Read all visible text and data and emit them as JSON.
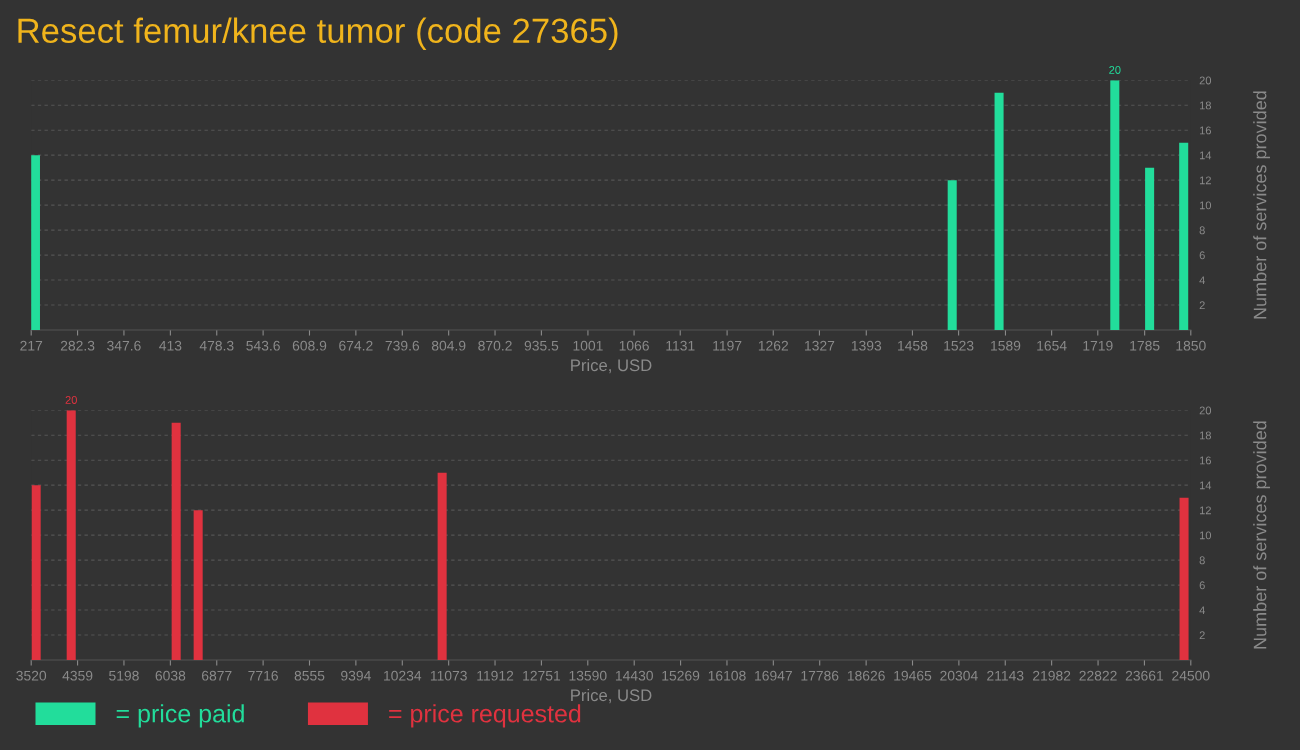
{
  "chart_data": [
    {
      "type": "bar",
      "title": "Resect femur/knee tumor (code 27365)",
      "xlabel": "Price, USD",
      "ylabel": "Number of services provided",
      "x": [
        223,
        1514,
        1580,
        1743,
        1792,
        1840
      ],
      "series": [
        {
          "name": "= price paid",
          "color": "#22dd9b",
          "values": [
            14,
            12,
            19,
            20,
            13,
            15
          ],
          "value_labels": [
            null,
            null,
            null,
            "20",
            null,
            null
          ]
        }
      ],
      "xlim": [
        217,
        1850
      ],
      "xticks": [
        217,
        282.3,
        347.6,
        413,
        478.3,
        543.6,
        608.9,
        674.2,
        739.6,
        804.9,
        870.2,
        935.5,
        1001,
        1066,
        1131,
        1197,
        1262,
        1327,
        1393,
        1458,
        1523,
        1589,
        1654,
        1719,
        1785,
        1850
      ],
      "ylim": [
        0,
        20
      ],
      "yticks": [
        2,
        4,
        6,
        8,
        10,
        12,
        14,
        16,
        18,
        20
      ],
      "grid": "y",
      "legend": "bottom left"
    },
    {
      "type": "bar",
      "xlabel": "Price, USD",
      "ylabel": "Number of services provided",
      "x": [
        3610,
        4244,
        6143,
        6541,
        10955,
        24378
      ],
      "series": [
        {
          "name": "= price requested",
          "color": "#e0323f",
          "values": [
            14,
            20,
            19,
            12,
            15,
            13
          ],
          "value_labels": [
            null,
            "20",
            null,
            null,
            null,
            null
          ]
        }
      ],
      "xlim": [
        3520,
        24500
      ],
      "xticks": [
        3520,
        4359,
        5198,
        6038,
        6877,
        7716,
        8555,
        9394,
        10234,
        11073,
        11912,
        12751,
        13590,
        14430,
        15269,
        16108,
        16947,
        17786,
        18626,
        19465,
        20304,
        21143,
        21982,
        22822,
        23661,
        24500
      ],
      "ylim": [
        0,
        20
      ],
      "yticks": [
        2,
        4,
        6,
        8,
        10,
        12,
        14,
        16,
        18,
        20
      ],
      "grid": "y",
      "legend": "bottom left"
    }
  ]
}
